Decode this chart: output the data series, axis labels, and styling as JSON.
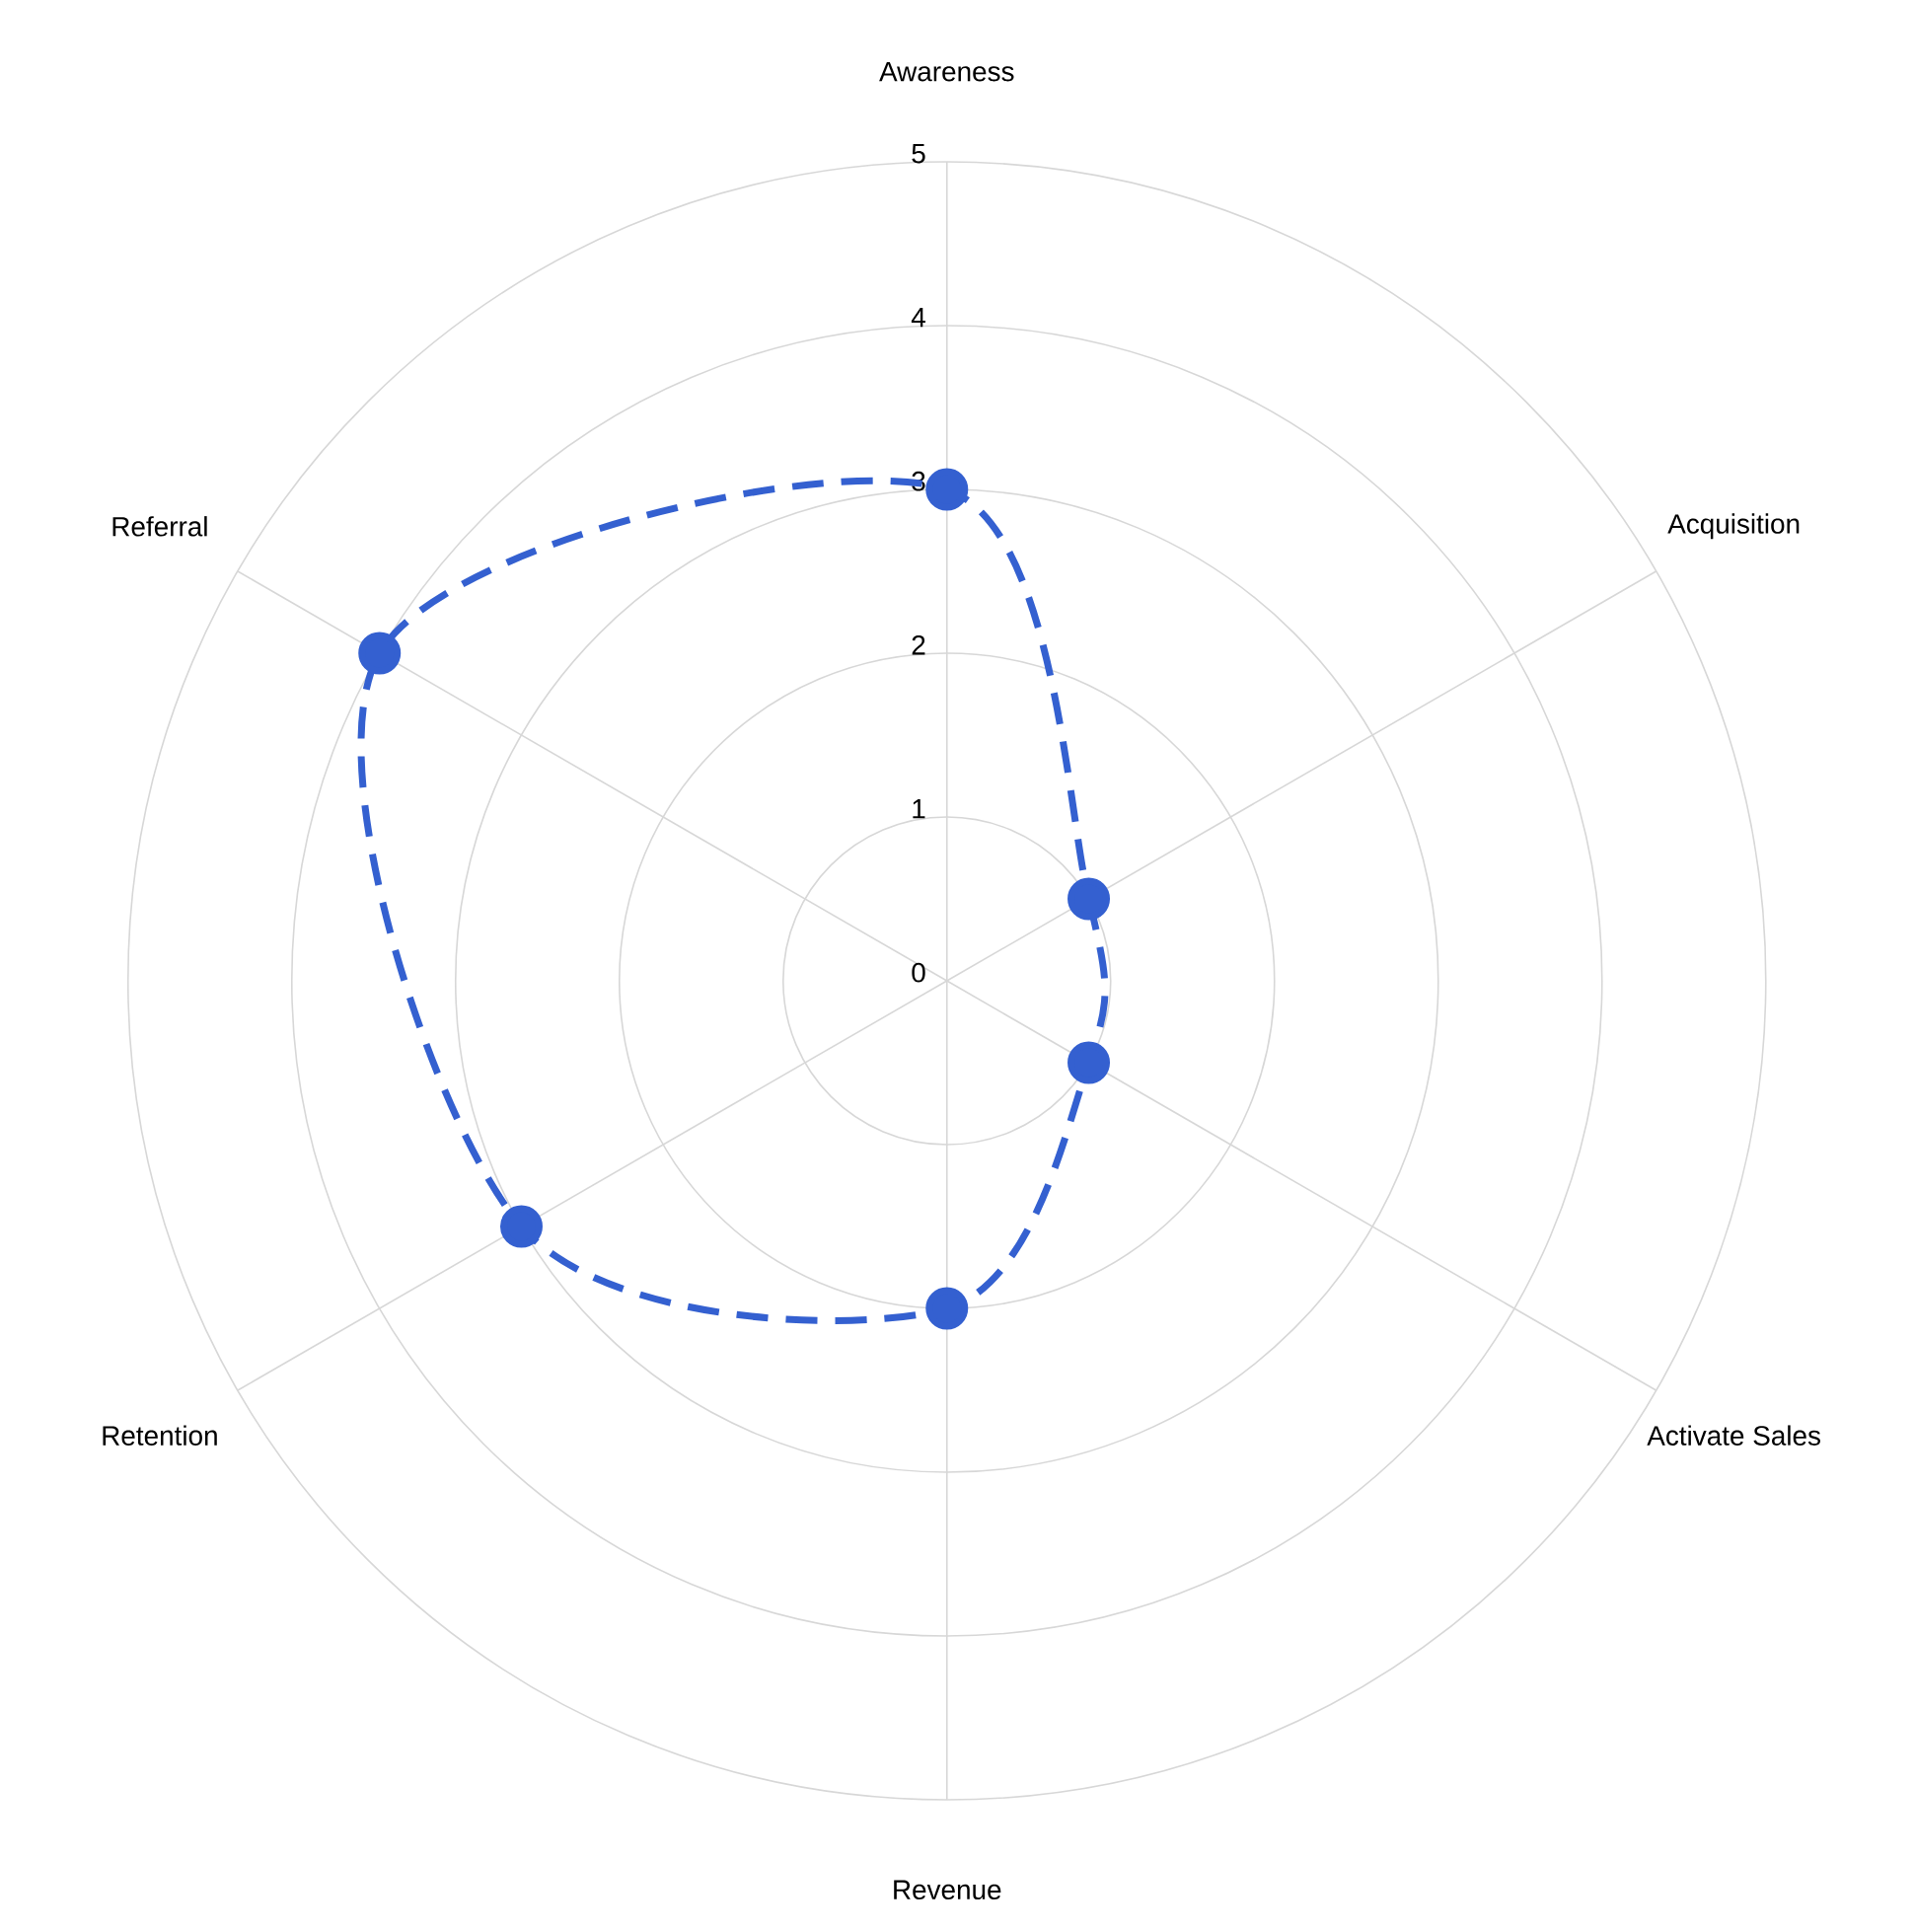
{
  "chart_data": {
    "type": "radar",
    "categories": [
      "Awareness",
      "Acquisition",
      "Activate Sales",
      "Revenue",
      "Retention",
      "Referral"
    ],
    "series": [
      {
        "color": "#3460d0",
        "values": [
          3,
          1,
          1,
          2,
          3,
          4
        ]
      }
    ],
    "ylim": [
      0,
      5
    ],
    "yticks": [
      0,
      1,
      2,
      3,
      4,
      5
    ],
    "grid": true,
    "marker": "circle",
    "line_style": "dashed"
  }
}
